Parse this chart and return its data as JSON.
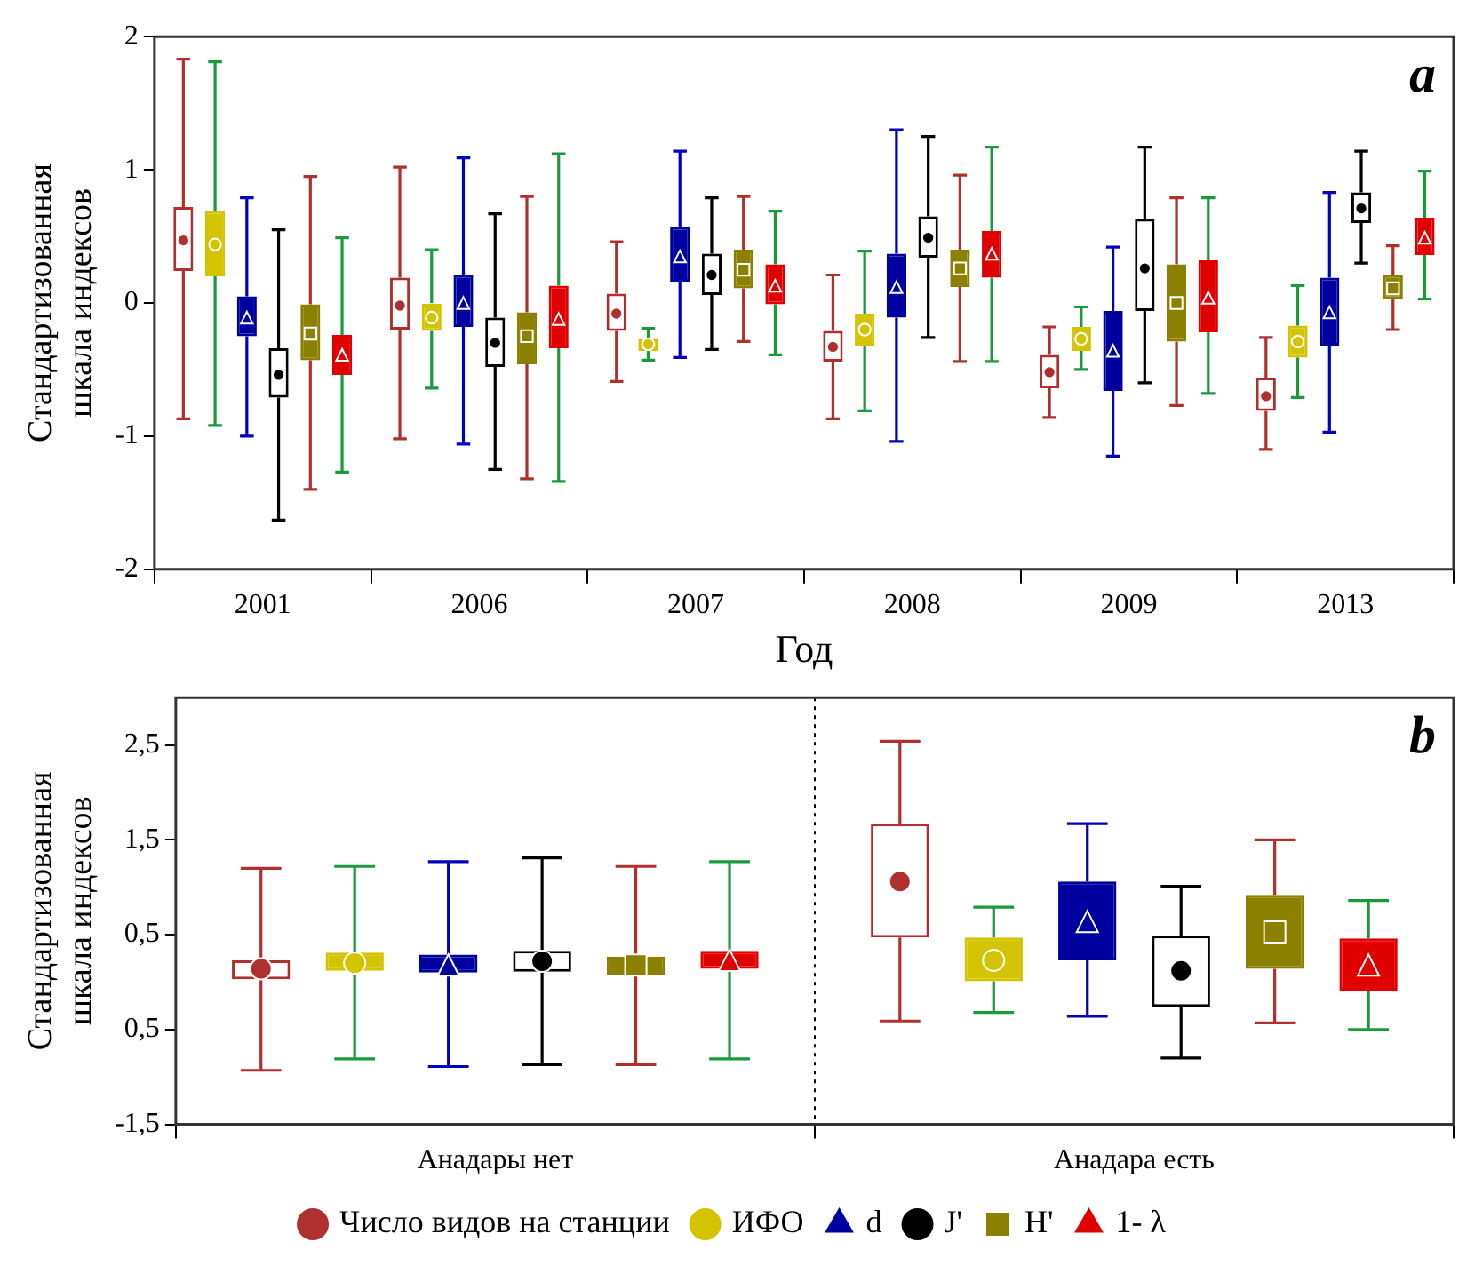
{
  "chart_data": [
    {
      "type": "box",
      "categories": [
        "2001",
        "2006",
        "2007",
        "2008",
        "2009",
        "2013"
      ],
      "xlabel": "Год",
      "ylabel": "Стандартизованная шкала индексов",
      "ylim": [
        -2,
        2
      ],
      "yticks": [
        -2,
        -1,
        0,
        1,
        2
      ],
      "grid": false,
      "legend": false,
      "annotations": [
        "a"
      ],
      "series": [
        {
          "color": "#b03030",
          "marker": "circle",
          "boxes": [
            {
              "low": -0.87,
              "q1": 0.24,
              "median": 0.47,
              "q3": 0.72,
              "high": 1.83
            },
            {
              "low": -1.02,
              "q1": -0.2,
              "median": -0.02,
              "q3": 0.19,
              "high": 1.02
            },
            {
              "low": -0.59,
              "q1": -0.21,
              "median": -0.08,
              "q3": 0.07,
              "high": 0.46
            },
            {
              "low": -0.87,
              "q1": -0.44,
              "median": -0.33,
              "q3": -0.21,
              "high": 0.21
            },
            {
              "low": -0.86,
              "q1": -0.64,
              "median": -0.52,
              "q3": -0.39,
              "high": -0.18
            },
            {
              "low": -1.1,
              "q1": -0.81,
              "median": -0.7,
              "q3": -0.56,
              "high": -0.26
            }
          ]
        },
        {
          "color": "#d4c400",
          "marker": "circle",
          "boxes": [
            {
              "low": -0.92,
              "q1": 0.2,
              "median": 0.44,
              "q3": 0.69,
              "high": 1.81
            },
            {
              "low": -0.64,
              "q1": -0.21,
              "median": -0.11,
              "q3": 0.0,
              "high": 0.4
            },
            {
              "low": -0.43,
              "q1": -0.36,
              "median": -0.31,
              "q3": -0.27,
              "high": -0.19
            },
            {
              "low": -0.81,
              "q1": -0.32,
              "median": -0.2,
              "q3": -0.08,
              "high": 0.39
            },
            {
              "low": -0.5,
              "q1": -0.36,
              "median": -0.27,
              "q3": -0.18,
              "high": -0.03
            },
            {
              "low": -0.71,
              "q1": -0.41,
              "median": -0.29,
              "q3": -0.17,
              "high": 0.13
            }
          ]
        },
        {
          "color": "#0000a0",
          "marker": "triangle",
          "boxes": [
            {
              "low": -1.0,
              "q1": -0.25,
              "median": -0.11,
              "q3": 0.05,
              "high": 0.79
            },
            {
              "low": -1.06,
              "q1": -0.18,
              "median": 0.0,
              "q3": 0.21,
              "high": 1.09
            },
            {
              "low": -0.41,
              "q1": 0.16,
              "median": 0.35,
              "q3": 0.57,
              "high": 1.14
            },
            {
              "low": -1.04,
              "q1": -0.11,
              "median": 0.12,
              "q3": 0.37,
              "high": 1.3
            },
            {
              "low": -1.15,
              "q1": -0.66,
              "median": -0.36,
              "q3": -0.06,
              "high": 0.42
            },
            {
              "low": -0.97,
              "q1": -0.32,
              "median": -0.07,
              "q3": 0.19,
              "high": 0.83
            }
          ]
        },
        {
          "color": "#000000",
          "marker": "circle",
          "boxes": [
            {
              "low": -1.63,
              "q1": -0.71,
              "median": -0.54,
              "q3": -0.34,
              "high": 0.55
            },
            {
              "low": -1.25,
              "q1": -0.48,
              "median": -0.3,
              "q3": -0.11,
              "high": 0.67
            },
            {
              "low": -0.35,
              "q1": 0.06,
              "median": 0.21,
              "q3": 0.37,
              "high": 0.79
            },
            {
              "low": -0.26,
              "q1": 0.34,
              "median": 0.49,
              "q3": 0.65,
              "high": 1.25
            },
            {
              "low": -0.6,
              "q1": -0.06,
              "median": 0.26,
              "q3": 0.63,
              "high": 1.17
            },
            {
              "low": 0.3,
              "q1": 0.6,
              "median": 0.71,
              "q3": 0.83,
              "high": 1.14
            }
          ]
        },
        {
          "color": "#8b8000",
          "marker": "square",
          "boxes": [
            {
              "low": -1.4,
              "q1": -0.43,
              "median": -0.23,
              "q3": -0.01,
              "high": 0.95
            },
            {
              "low": -1.32,
              "q1": -0.46,
              "median": -0.25,
              "q3": -0.07,
              "high": 0.8
            },
            {
              "low": -0.29,
              "q1": 0.11,
              "median": 0.25,
              "q3": 0.4,
              "high": 0.8
            },
            {
              "low": -0.44,
              "q1": 0.12,
              "median": 0.26,
              "q3": 0.4,
              "high": 0.96
            },
            {
              "low": -0.77,
              "q1": -0.29,
              "median": 0.0,
              "q3": 0.29,
              "high": 0.79
            },
            {
              "low": -0.2,
              "q1": 0.03,
              "median": 0.11,
              "q3": 0.21,
              "high": 0.43
            }
          ]
        },
        {
          "color": "#e00000",
          "marker": "triangle",
          "boxes": [
            {
              "low": -1.27,
              "q1": -0.54,
              "median": -0.39,
              "q3": -0.24,
              "high": 0.49
            },
            {
              "low": -1.34,
              "q1": -0.34,
              "median": -0.12,
              "q3": 0.13,
              "high": 1.12
            },
            {
              "low": -0.39,
              "q1": -0.01,
              "median": 0.13,
              "q3": 0.29,
              "high": 0.69
            },
            {
              "low": -0.44,
              "q1": 0.19,
              "median": 0.37,
              "q3": 0.54,
              "high": 1.17
            },
            {
              "low": -0.68,
              "q1": -0.22,
              "median": 0.04,
              "q3": 0.32,
              "high": 0.79
            },
            {
              "low": 0.03,
              "q1": 0.36,
              "median": 0.49,
              "q3": 0.64,
              "high": 0.99
            }
          ]
        }
      ]
    },
    {
      "type": "box",
      "categories": [
        "Анадары нет",
        "Анадара есть"
      ],
      "ylabel": "Стандартизованная шкала индексов",
      "ylim": [
        -1.5,
        3
      ],
      "yticks": [
        {
          "value": -1.5,
          "label": "-1,5"
        },
        {
          "value": -0.5,
          "label": "0,5"
        },
        {
          "value": 0.5,
          "label": "0,5"
        },
        {
          "value": 1.5,
          "label": "1,5"
        },
        {
          "value": 2.5,
          "label": "2,5"
        }
      ],
      "grid": "x",
      "legend": "bottom",
      "annotations": [
        "b"
      ],
      "series": [
        {
          "name": "Число видов на станции",
          "color": "#b03030",
          "marker": "circle",
          "boxes": [
            {
              "low": -0.93,
              "q1": 0.03,
              "median": 0.14,
              "q3": 0.23,
              "high": 1.2
            },
            {
              "low": -0.41,
              "q1": 0.47,
              "median": 1.06,
              "q3": 1.67,
              "high": 2.54
            }
          ]
        },
        {
          "name": "ИФО",
          "color": "#d4c400",
          "marker": "circle",
          "boxes": [
            {
              "low": -0.81,
              "q1": 0.12,
              "median": 0.2,
              "q3": 0.31,
              "high": 1.22
            },
            {
              "low": -0.32,
              "q1": 0.01,
              "median": 0.23,
              "q3": 0.47,
              "high": 0.79
            }
          ]
        },
        {
          "name": "d",
          "color": "#0000a0",
          "marker": "triangle",
          "boxes": [
            {
              "low": -0.89,
              "q1": 0.1,
              "median": 0.18,
              "q3": 0.29,
              "high": 1.27
            },
            {
              "low": -0.36,
              "q1": 0.23,
              "median": 0.64,
              "q3": 1.06,
              "high": 1.67
            }
          ]
        },
        {
          "name": "J'",
          "color": "#000000",
          "marker": "circle",
          "boxes": [
            {
              "low": -0.87,
              "q1": 0.11,
              "median": 0.22,
              "q3": 0.33,
              "high": 1.31
            },
            {
              "low": -0.8,
              "q1": -0.26,
              "median": 0.12,
              "q3": 0.49,
              "high": 1.01
            }
          ]
        },
        {
          "name": "H'",
          "color": "#8b8000",
          "marker": "square",
          "boxes": [
            {
              "low": -0.87,
              "q1": 0.08,
              "median": 0.18,
              "q3": 0.27,
              "high": 1.22
            },
            {
              "low": -0.43,
              "q1": 0.14,
              "median": 0.53,
              "q3": 0.92,
              "high": 1.5
            }
          ]
        },
        {
          "name": "1- λ",
          "color": "#e00000",
          "marker": "triangle",
          "boxes": [
            {
              "low": -0.81,
              "q1": 0.14,
              "median": 0.23,
              "q3": 0.33,
              "high": 1.27
            },
            {
              "low": -0.5,
              "q1": -0.09,
              "median": 0.18,
              "q3": 0.46,
              "high": 0.86
            }
          ]
        }
      ]
    }
  ]
}
